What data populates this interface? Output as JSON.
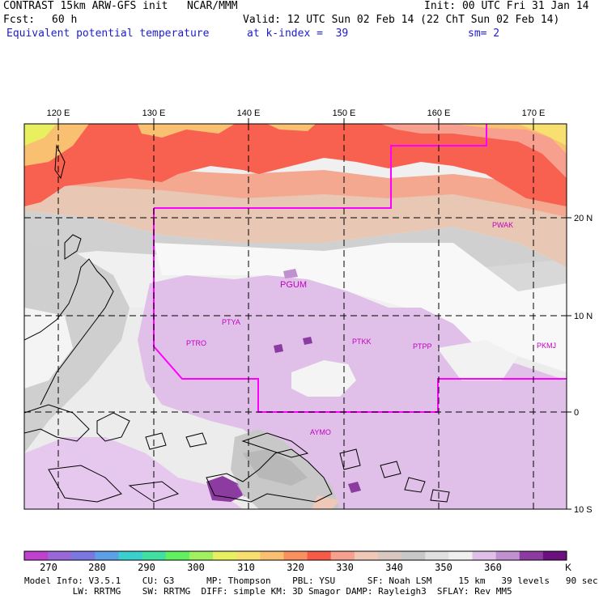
{
  "header": {
    "line1_left": "CONTRAST 15km ARW-GFS init   NCAR/MMM",
    "line1_right": "Init: 00 UTC Fri 31 Jan 14",
    "line2_left_label": "Fcst:",
    "line2_left_value": "60 h",
    "line2_right": "Valid: 12 UTC Sun 02 Feb 14 (22 ChT Sun 02 Feb 14)",
    "line3_left": "Equivalent potential temperature",
    "line3_mid": "at k-index =  39",
    "line3_right": "sm= 2"
  },
  "map": {
    "lon_labels": [
      "120 E",
      "130 E",
      "140 E",
      "150 E",
      "160 E",
      "170 E"
    ],
    "lat_labels": [
      "20 N",
      "10 N",
      "0",
      "10 S"
    ],
    "stations": [
      "PGUM",
      "PTYA",
      "PTRO",
      "PTKK",
      "PTPP",
      "PKMJ",
      "PWAK",
      "AYMO"
    ],
    "colors": {
      "frame": "#000000",
      "boundary": "#ff00ff",
      "station_text": "#c000c0"
    }
  },
  "colorbar": {
    "unit": "K",
    "labels": [
      "270",
      "280",
      "290",
      "300",
      "310",
      "320",
      "330",
      "340",
      "350",
      "360"
    ],
    "colors": [
      "#c040d0",
      "#9868d8",
      "#7a78e0",
      "#5ca0e8",
      "#3ad0d0",
      "#40e0a0",
      "#60f060",
      "#a0f060",
      "#e8f060",
      "#f8e070",
      "#f8c070",
      "#f89060",
      "#f85a48",
      "#f8a090",
      "#f0c8b8",
      "#d8c8c0",
      "#c8c8c8",
      "#e0e0e0",
      "#f0f0f0",
      "#e0c0e8",
      "#c090d0",
      "#8c3ca0",
      "#6c1080"
    ]
  },
  "footer": {
    "line1": "Model Info: V3.5.1    CU: G3      MP: Thompson    PBL: YSU      SF: Noah LSM     15 km   39 levels   90 sec",
    "line2": "         LW: RRTMG    SW: RRTMG  DIFF: simple KM: 3D Smagor DAMP: Rayleigh3  SFLAY: Rev MM5"
  }
}
